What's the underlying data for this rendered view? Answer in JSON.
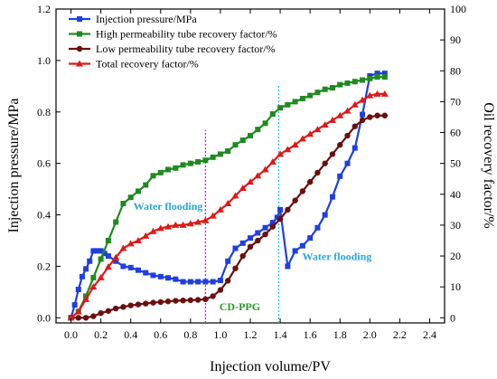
{
  "chart_data": {
    "type": "line",
    "xlabel": "Injection volume/PV",
    "ylabel_left": "Injection pressure/MPa",
    "ylabel_right": "Oil recovery factor/%",
    "xlim": [
      -0.1,
      2.5
    ],
    "ylim_left": [
      -0.02,
      1.2
    ],
    "ylim_right": [
      -1.67,
      100
    ],
    "x_ticks": [
      0.0,
      0.2,
      0.4,
      0.6,
      0.8,
      1.0,
      1.2,
      1.4,
      1.6,
      1.8,
      2.0,
      2.2,
      2.4
    ],
    "y_ticks_left": [
      0.0,
      0.2,
      0.4,
      0.6,
      0.8,
      1.0,
      1.2
    ],
    "y_ticks_right": [
      0,
      10,
      20,
      30,
      40,
      50,
      60,
      70,
      80,
      90,
      100
    ],
    "x_tick_labels": [
      "0.0",
      "0.2",
      "0.4",
      "0.6",
      "0.8",
      "1.0",
      "1.2",
      "1.4",
      "1.6",
      "1.8",
      "2.0",
      "2.2",
      "2.4"
    ],
    "y_tick_labels_left": [
      "0.0",
      "0.2",
      "0.4",
      "0.6",
      "0.8",
      "1.0",
      "1.2"
    ],
    "y_tick_labels_right": [
      "0",
      "10",
      "20",
      "30",
      "40",
      "50",
      "60",
      "70",
      "80",
      "90",
      "100"
    ],
    "legend_position": "top-left",
    "series": [
      {
        "name": "Injection pressure/MPa",
        "axis": "left",
        "color": "#1f3fe0",
        "marker": "square",
        "x": [
          0.0,
          0.025,
          0.05,
          0.075,
          0.1,
          0.125,
          0.15,
          0.175,
          0.2,
          0.225,
          0.25,
          0.3,
          0.35,
          0.4,
          0.45,
          0.5,
          0.55,
          0.6,
          0.65,
          0.7,
          0.75,
          0.8,
          0.85,
          0.9,
          0.95,
          1.0,
          1.05,
          1.1,
          1.15,
          1.2,
          1.25,
          1.3,
          1.35,
          1.38,
          1.4,
          1.45,
          1.5,
          1.55,
          1.6,
          1.65,
          1.7,
          1.75,
          1.8,
          1.85,
          1.9,
          1.95,
          2.0,
          2.05,
          2.1
        ],
        "y": [
          0.0,
          0.05,
          0.11,
          0.16,
          0.19,
          0.22,
          0.26,
          0.26,
          0.26,
          0.25,
          0.24,
          0.22,
          0.2,
          0.195,
          0.185,
          0.175,
          0.165,
          0.16,
          0.155,
          0.15,
          0.14,
          0.14,
          0.14,
          0.14,
          0.14,
          0.145,
          0.22,
          0.27,
          0.29,
          0.31,
          0.33,
          0.35,
          0.37,
          0.39,
          0.42,
          0.2,
          0.26,
          0.28,
          0.31,
          0.35,
          0.4,
          0.47,
          0.55,
          0.6,
          0.66,
          0.79,
          0.94,
          0.95,
          0.95
        ]
      },
      {
        "name": "High permeability tube recovery factor/%",
        "axis": "right",
        "color": "#1f8a1f",
        "marker": "square",
        "x": [
          0.0,
          0.05,
          0.1,
          0.15,
          0.2,
          0.25,
          0.3,
          0.35,
          0.4,
          0.45,
          0.5,
          0.55,
          0.6,
          0.65,
          0.7,
          0.75,
          0.8,
          0.85,
          0.9,
          0.95,
          1.0,
          1.05,
          1.1,
          1.15,
          1.2,
          1.25,
          1.3,
          1.35,
          1.4,
          1.45,
          1.5,
          1.55,
          1.6,
          1.65,
          1.7,
          1.75,
          1.8,
          1.85,
          1.9,
          1.95,
          2.0,
          2.05,
          2.1
        ],
        "y": [
          0,
          2,
          7,
          13,
          19,
          25,
          31,
          37,
          39,
          41,
          43,
          46,
          47,
          48,
          48.5,
          49.5,
          50,
          50.5,
          51,
          52,
          53,
          54,
          56,
          57.5,
          59,
          61,
          63,
          66,
          68,
          69,
          70,
          71,
          72,
          73,
          74,
          74.5,
          75.5,
          76,
          76.5,
          77,
          77.5,
          78,
          78
        ]
      },
      {
        "name": "Low permeability tube recovery factor/%",
        "axis": "right",
        "color": "#6b0f0f",
        "marker": "circle",
        "x": [
          0.0,
          0.05,
          0.1,
          0.15,
          0.2,
          0.25,
          0.3,
          0.35,
          0.4,
          0.45,
          0.5,
          0.55,
          0.6,
          0.65,
          0.7,
          0.75,
          0.8,
          0.85,
          0.9,
          0.95,
          1.0,
          1.05,
          1.1,
          1.15,
          1.2,
          1.25,
          1.3,
          1.35,
          1.4,
          1.45,
          1.5,
          1.55,
          1.6,
          1.65,
          1.7,
          1.75,
          1.8,
          1.85,
          1.9,
          1.95,
          2.0,
          2.05,
          2.1
        ],
        "y": [
          0,
          0,
          0,
          0.5,
          1.5,
          2.2,
          3,
          3.5,
          4,
          4.3,
          4.6,
          4.9,
          5.1,
          5.3,
          5.5,
          5.6,
          5.7,
          5.8,
          6,
          7,
          9,
          12,
          16,
          20,
          23,
          25,
          27,
          29.5,
          32,
          35,
          38,
          41,
          44,
          47,
          50,
          53,
          56,
          59,
          62,
          64,
          65,
          65.5,
          65.5
        ]
      },
      {
        "name": "Total recovery factor/%",
        "axis": "right",
        "color": "#e01818",
        "marker": "triangle",
        "x": [
          0.0,
          0.05,
          0.1,
          0.15,
          0.2,
          0.25,
          0.3,
          0.35,
          0.4,
          0.45,
          0.5,
          0.55,
          0.6,
          0.65,
          0.7,
          0.75,
          0.8,
          0.85,
          0.9,
          0.95,
          1.0,
          1.05,
          1.1,
          1.15,
          1.2,
          1.25,
          1.3,
          1.35,
          1.4,
          1.45,
          1.5,
          1.55,
          1.6,
          1.65,
          1.7,
          1.75,
          1.8,
          1.85,
          1.9,
          1.95,
          2.0,
          2.05,
          2.1
        ],
        "y": [
          0,
          2,
          6,
          10,
          13,
          16.5,
          19.5,
          22.5,
          24,
          25,
          26.5,
          28,
          29,
          29.5,
          30,
          30,
          30.5,
          31,
          31.5,
          33,
          35,
          37,
          39.5,
          42,
          44,
          46,
          48,
          50.5,
          53,
          54.5,
          56,
          58,
          59.5,
          61,
          62.5,
          64,
          65.5,
          67,
          69,
          70.5,
          72,
          72.5,
          72.5
        ]
      }
    ],
    "annotations": [
      {
        "text": "Water flooding",
        "x": 0.65,
        "y_left": 0.42,
        "color": "#2aa7d8"
      },
      {
        "text": "Water flooding",
        "x": 1.78,
        "y_left": 0.225,
        "color": "#2aa7d8"
      },
      {
        "text": "CD-PPG",
        "x": 1.13,
        "y_left": 0.03,
        "color": "#2a9a2a"
      }
    ],
    "vlines": [
      {
        "x": 0.9,
        "color": "#cc22cc",
        "y_min": -0.02,
        "y_max": 0.73
      },
      {
        "x": 1.39,
        "color": "#22c8d8",
        "y_min": -0.02,
        "y_max": 0.905
      }
    ]
  }
}
